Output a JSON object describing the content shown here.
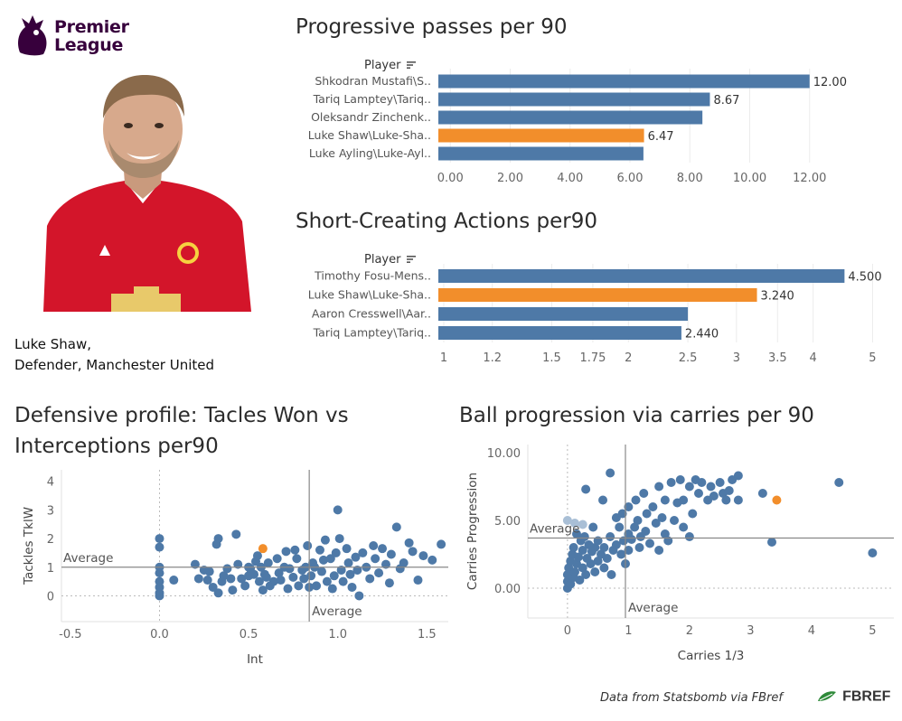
{
  "branding": {
    "logo_line1": "Premier",
    "logo_line2": "League",
    "logo_color": "#37003c"
  },
  "player": {
    "name_line": "Luke Shaw,",
    "role_line": "Defender, Manchester United",
    "photo_icon": "player-photo",
    "kit_color": "#d3152a"
  },
  "colors": {
    "bar": "#4e79a7",
    "highlight": "#f28e2b",
    "grid": "#ececec",
    "point": "#4e79a7"
  },
  "chart_data": [
    {
      "type": "bar",
      "title": "Progressive passes per 90",
      "header": "Player",
      "categories": [
        "Shkodran Mustafi\\S..",
        "Tariq Lamptey\\Tariq..",
        "Oleksandr Zinchenk..",
        "Luke Shaw\\Luke-Sha..",
        "Luke Ayling\\Luke-Ayl.."
      ],
      "values": [
        12.0,
        8.67,
        8.42,
        6.47,
        6.45
      ],
      "data_labels": [
        "12.00",
        "8.67",
        "",
        "6.47",
        ""
      ],
      "highlight_index": 3,
      "xticks": [
        0,
        2,
        4,
        6,
        8,
        10,
        12
      ],
      "xtick_labels": [
        "0.00",
        "2.00",
        "4.00",
        "6.00",
        "8.00",
        "10.00",
        "12.00"
      ],
      "xlim": [
        -0.4,
        14
      ]
    },
    {
      "type": "bar",
      "title": "Short-Creating Actions per90",
      "header": "Player",
      "scale": "log",
      "categories": [
        "Timothy Fosu-Mens..",
        "Luke Shaw\\Luke-Sha..",
        "Aaron Cresswell\\Aar..",
        "Tariq Lamptey\\Tariq.."
      ],
      "values": [
        4.5,
        3.24,
        2.5,
        2.44
      ],
      "data_labels": [
        "4.500",
        "3.240",
        "",
        "2.440"
      ],
      "highlight_index": 1,
      "xticks": [
        1,
        1.2,
        1.5,
        1.75,
        2,
        2.5,
        3,
        3.5,
        4,
        5
      ],
      "xtick_labels": [
        "1",
        "1.2",
        "1.5",
        "1.75",
        "2",
        "2.5",
        "3",
        "3.5",
        "4",
        "5"
      ],
      "xlim": [
        0.98,
        5.2
      ]
    },
    {
      "type": "scatter",
      "title_line1": "Defensive profile: Tacles Won vs",
      "title_line2": "Interceptions per90",
      "xlabel": "Int",
      "ylabel": "Tackles TklW",
      "xlim": [
        -0.55,
        1.62
      ],
      "ylim": [
        -0.9,
        4.4
      ],
      "xticks": [
        -0.5,
        0.0,
        0.5,
        1.0,
        1.5
      ],
      "xtick_labels": [
        "-0.5",
        "0.0",
        "0.5",
        "1.0",
        "1.5"
      ],
      "yticks": [
        0,
        1,
        2,
        3,
        4
      ],
      "ytick_labels": [
        "0",
        "1",
        "2",
        "3",
        "4"
      ],
      "avg_x": 0.84,
      "avg_y": 1.0,
      "avg_label": "Average",
      "highlight": [
        0.58,
        1.65
      ],
      "points": [
        [
          0.0,
          2.0
        ],
        [
          0.0,
          1.7
        ],
        [
          0.0,
          1.0
        ],
        [
          0.0,
          0.8
        ],
        [
          0.0,
          0.5
        ],
        [
          0.0,
          0.3
        ],
        [
          0.0,
          0.1
        ],
        [
          0.0,
          0.0
        ],
        [
          0.08,
          0.55
        ],
        [
          0.2,
          1.1
        ],
        [
          0.22,
          0.6
        ],
        [
          0.25,
          0.9
        ],
        [
          0.27,
          0.55
        ],
        [
          0.28,
          0.85
        ],
        [
          0.3,
          0.3
        ],
        [
          0.32,
          1.8
        ],
        [
          0.33,
          2.0
        ],
        [
          0.33,
          0.1
        ],
        [
          0.35,
          0.5
        ],
        [
          0.36,
          0.7
        ],
        [
          0.38,
          0.95
        ],
        [
          0.4,
          0.6
        ],
        [
          0.41,
          0.2
        ],
        [
          0.43,
          2.15
        ],
        [
          0.44,
          1.1
        ],
        [
          0.46,
          0.6
        ],
        [
          0.48,
          0.35
        ],
        [
          0.5,
          1.0
        ],
        [
          0.5,
          0.7
        ],
        [
          0.51,
          0.95
        ],
        [
          0.53,
          0.75
        ],
        [
          0.54,
          1.2
        ],
        [
          0.55,
          1.4
        ],
        [
          0.56,
          0.5
        ],
        [
          0.57,
          1.0
        ],
        [
          0.58,
          0.2
        ],
        [
          0.59,
          0.75
        ],
        [
          0.6,
          0.65
        ],
        [
          0.61,
          1.15
        ],
        [
          0.62,
          0.35
        ],
        [
          0.64,
          0.5
        ],
        [
          0.66,
          1.3
        ],
        [
          0.67,
          0.8
        ],
        [
          0.68,
          0.55
        ],
        [
          0.7,
          1.0
        ],
        [
          0.71,
          1.55
        ],
        [
          0.72,
          0.25
        ],
        [
          0.73,
          0.95
        ],
        [
          0.75,
          0.65
        ],
        [
          0.76,
          1.6
        ],
        [
          0.77,
          1.3
        ],
        [
          0.78,
          0.35
        ],
        [
          0.8,
          0.9
        ],
        [
          0.81,
          0.6
        ],
        [
          0.82,
          1.0
        ],
        [
          0.83,
          1.75
        ],
        [
          0.84,
          0.3
        ],
        [
          0.85,
          0.7
        ],
        [
          0.86,
          1.15
        ],
        [
          0.87,
          1.0
        ],
        [
          0.88,
          0.35
        ],
        [
          0.9,
          1.6
        ],
        [
          0.91,
          0.85
        ],
        [
          0.92,
          1.25
        ],
        [
          0.93,
          1.95
        ],
        [
          0.94,
          0.5
        ],
        [
          0.96,
          1.3
        ],
        [
          0.97,
          0.25
        ],
        [
          0.98,
          0.7
        ],
        [
          0.99,
          1.5
        ],
        [
          1.0,
          3.0
        ],
        [
          1.01,
          2.0
        ],
        [
          1.02,
          0.9
        ],
        [
          1.03,
          0.5
        ],
        [
          1.05,
          1.65
        ],
        [
          1.06,
          1.15
        ],
        [
          1.07,
          0.75
        ],
        [
          1.08,
          0.3
        ],
        [
          1.1,
          1.35
        ],
        [
          1.11,
          0.9
        ],
        [
          1.12,
          0.0
        ],
        [
          1.14,
          1.5
        ],
        [
          1.16,
          1.0
        ],
        [
          1.18,
          0.6
        ],
        [
          1.2,
          1.75
        ],
        [
          1.21,
          1.3
        ],
        [
          1.23,
          0.8
        ],
        [
          1.25,
          1.65
        ],
        [
          1.27,
          1.1
        ],
        [
          1.29,
          0.45
        ],
        [
          1.3,
          1.45
        ],
        [
          1.33,
          2.4
        ],
        [
          1.35,
          0.95
        ],
        [
          1.37,
          1.15
        ],
        [
          1.4,
          1.85
        ],
        [
          1.42,
          1.55
        ],
        [
          1.45,
          0.55
        ],
        [
          1.48,
          1.4
        ],
        [
          1.53,
          1.25
        ],
        [
          1.58,
          1.8
        ]
      ]
    },
    {
      "type": "scatter",
      "title": "Ball progression via carries per 90",
      "xlabel": "Carries 1/3",
      "ylabel": "Carries Progression",
      "xlim": [
        -0.65,
        5.35
      ],
      "ylim": [
        -2.2,
        10.6
      ],
      "xticks": [
        0,
        1,
        2,
        3,
        4,
        5
      ],
      "xtick_labels": [
        "0",
        "1",
        "2",
        "3",
        "4",
        "5"
      ],
      "yticks": [
        0,
        5,
        10
      ],
      "ytick_labels": [
        "0.00",
        "5.00",
        "10.00"
      ],
      "avg_x": 0.95,
      "avg_y": 3.7,
      "avg_label": "Average",
      "highlight": [
        3.43,
        6.5
      ],
      "light_points": [
        [
          0.0,
          5.0
        ],
        [
          0.12,
          4.8
        ],
        [
          0.25,
          4.7
        ]
      ],
      "points": [
        [
          0.0,
          0.0
        ],
        [
          0.0,
          0.5
        ],
        [
          0.0,
          1.0
        ],
        [
          0.02,
          1.5
        ],
        [
          0.05,
          2.0
        ],
        [
          0.05,
          0.3
        ],
        [
          0.08,
          2.5
        ],
        [
          0.1,
          0.8
        ],
        [
          0.1,
          3.0
        ],
        [
          0.12,
          1.2
        ],
        [
          0.15,
          4.0
        ],
        [
          0.15,
          1.8
        ],
        [
          0.18,
          2.3
        ],
        [
          0.2,
          0.6
        ],
        [
          0.22,
          3.5
        ],
        [
          0.25,
          1.5
        ],
        [
          0.25,
          2.8
        ],
        [
          0.28,
          3.8
        ],
        [
          0.3,
          1.0
        ],
        [
          0.3,
          7.3
        ],
        [
          0.32,
          2.2
        ],
        [
          0.35,
          3.2
        ],
        [
          0.38,
          1.8
        ],
        [
          0.4,
          2.7
        ],
        [
          0.42,
          4.5
        ],
        [
          0.45,
          3.0
        ],
        [
          0.45,
          1.2
        ],
        [
          0.5,
          2.0
        ],
        [
          0.5,
          3.5
        ],
        [
          0.55,
          2.5
        ],
        [
          0.58,
          6.5
        ],
        [
          0.6,
          1.5
        ],
        [
          0.6,
          3.0
        ],
        [
          0.65,
          2.2
        ],
        [
          0.7,
          8.5
        ],
        [
          0.7,
          3.8
        ],
        [
          0.72,
          1.0
        ],
        [
          0.75,
          2.8
        ],
        [
          0.8,
          3.2
        ],
        [
          0.8,
          5.2
        ],
        [
          0.85,
          4.5
        ],
        [
          0.88,
          2.5
        ],
        [
          0.9,
          5.5
        ],
        [
          0.92,
          3.5
        ],
        [
          0.95,
          1.8
        ],
        [
          1.0,
          4.0
        ],
        [
          1.0,
          6.0
        ],
        [
          1.0,
          2.8
        ],
        [
          1.05,
          3.6
        ],
        [
          1.1,
          4.5
        ],
        [
          1.12,
          6.5
        ],
        [
          1.15,
          5.0
        ],
        [
          1.18,
          3.0
        ],
        [
          1.2,
          3.8
        ],
        [
          1.25,
          7.0
        ],
        [
          1.28,
          4.2
        ],
        [
          1.3,
          5.5
        ],
        [
          1.35,
          3.3
        ],
        [
          1.4,
          6.0
        ],
        [
          1.45,
          4.8
        ],
        [
          1.5,
          7.5
        ],
        [
          1.5,
          2.8
        ],
        [
          1.55,
          5.2
        ],
        [
          1.6,
          6.5
        ],
        [
          1.6,
          4.0
        ],
        [
          1.65,
          3.5
        ],
        [
          1.7,
          7.8
        ],
        [
          1.75,
          5.0
        ],
        [
          1.8,
          6.3
        ],
        [
          1.85,
          8.0
        ],
        [
          1.9,
          4.5
        ],
        [
          1.9,
          6.5
        ],
        [
          2.0,
          7.5
        ],
        [
          2.0,
          3.8
        ],
        [
          2.05,
          5.5
        ],
        [
          2.1,
          8.0
        ],
        [
          2.15,
          7.0
        ],
        [
          2.2,
          7.8
        ],
        [
          2.3,
          6.5
        ],
        [
          2.35,
          7.5
        ],
        [
          2.4,
          6.8
        ],
        [
          2.5,
          7.8
        ],
        [
          2.55,
          7.0
        ],
        [
          2.6,
          6.5
        ],
        [
          2.65,
          7.2
        ],
        [
          2.7,
          8.0
        ],
        [
          2.8,
          8.3
        ],
        [
          2.8,
          6.5
        ],
        [
          3.2,
          7.0
        ],
        [
          3.35,
          3.4
        ],
        [
          4.45,
          7.8
        ],
        [
          5.0,
          2.6
        ]
      ]
    }
  ],
  "footer": {
    "credit": "Data from Statsbomb via FBref",
    "brand": "FBREF"
  }
}
